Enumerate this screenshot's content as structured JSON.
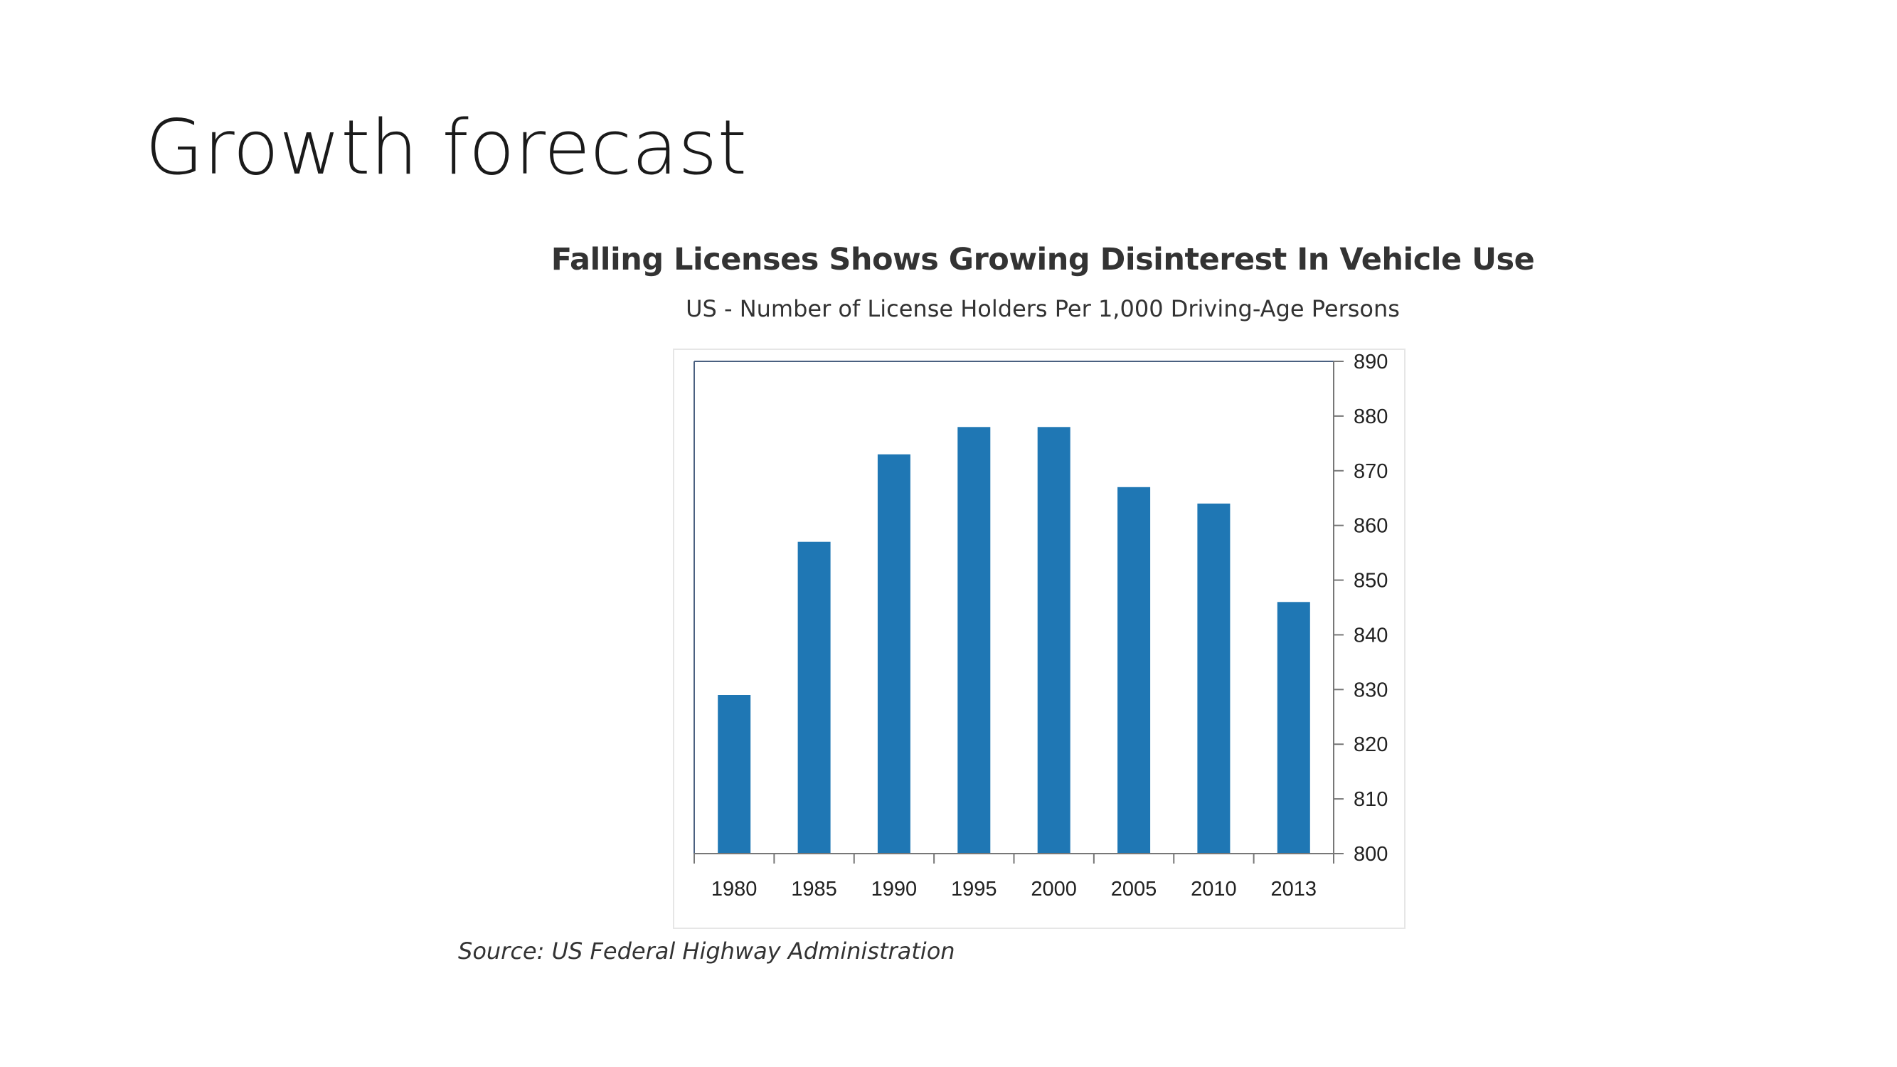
{
  "slide": {
    "title": "Growth forecast"
  },
  "chart_data": {
    "type": "bar",
    "title": "Falling Licenses Shows Growing Disinterest In Vehicle Use",
    "subtitle": "US - Number of License Holders Per 1,000 Driving-Age Persons",
    "categories": [
      "1980",
      "1985",
      "1990",
      "1995",
      "2000",
      "2005",
      "2010",
      "2013"
    ],
    "values": [
      829,
      857,
      873,
      878,
      878,
      867,
      864,
      846
    ],
    "ylim": [
      800,
      890
    ],
    "yticks": [
      800,
      810,
      820,
      830,
      840,
      850,
      860,
      870,
      880,
      890
    ],
    "yaxis_position": "right",
    "grid": false,
    "legend": "none",
    "bar_color": "#1f77b4",
    "source": "Source: US Federal Highway Administration"
  }
}
